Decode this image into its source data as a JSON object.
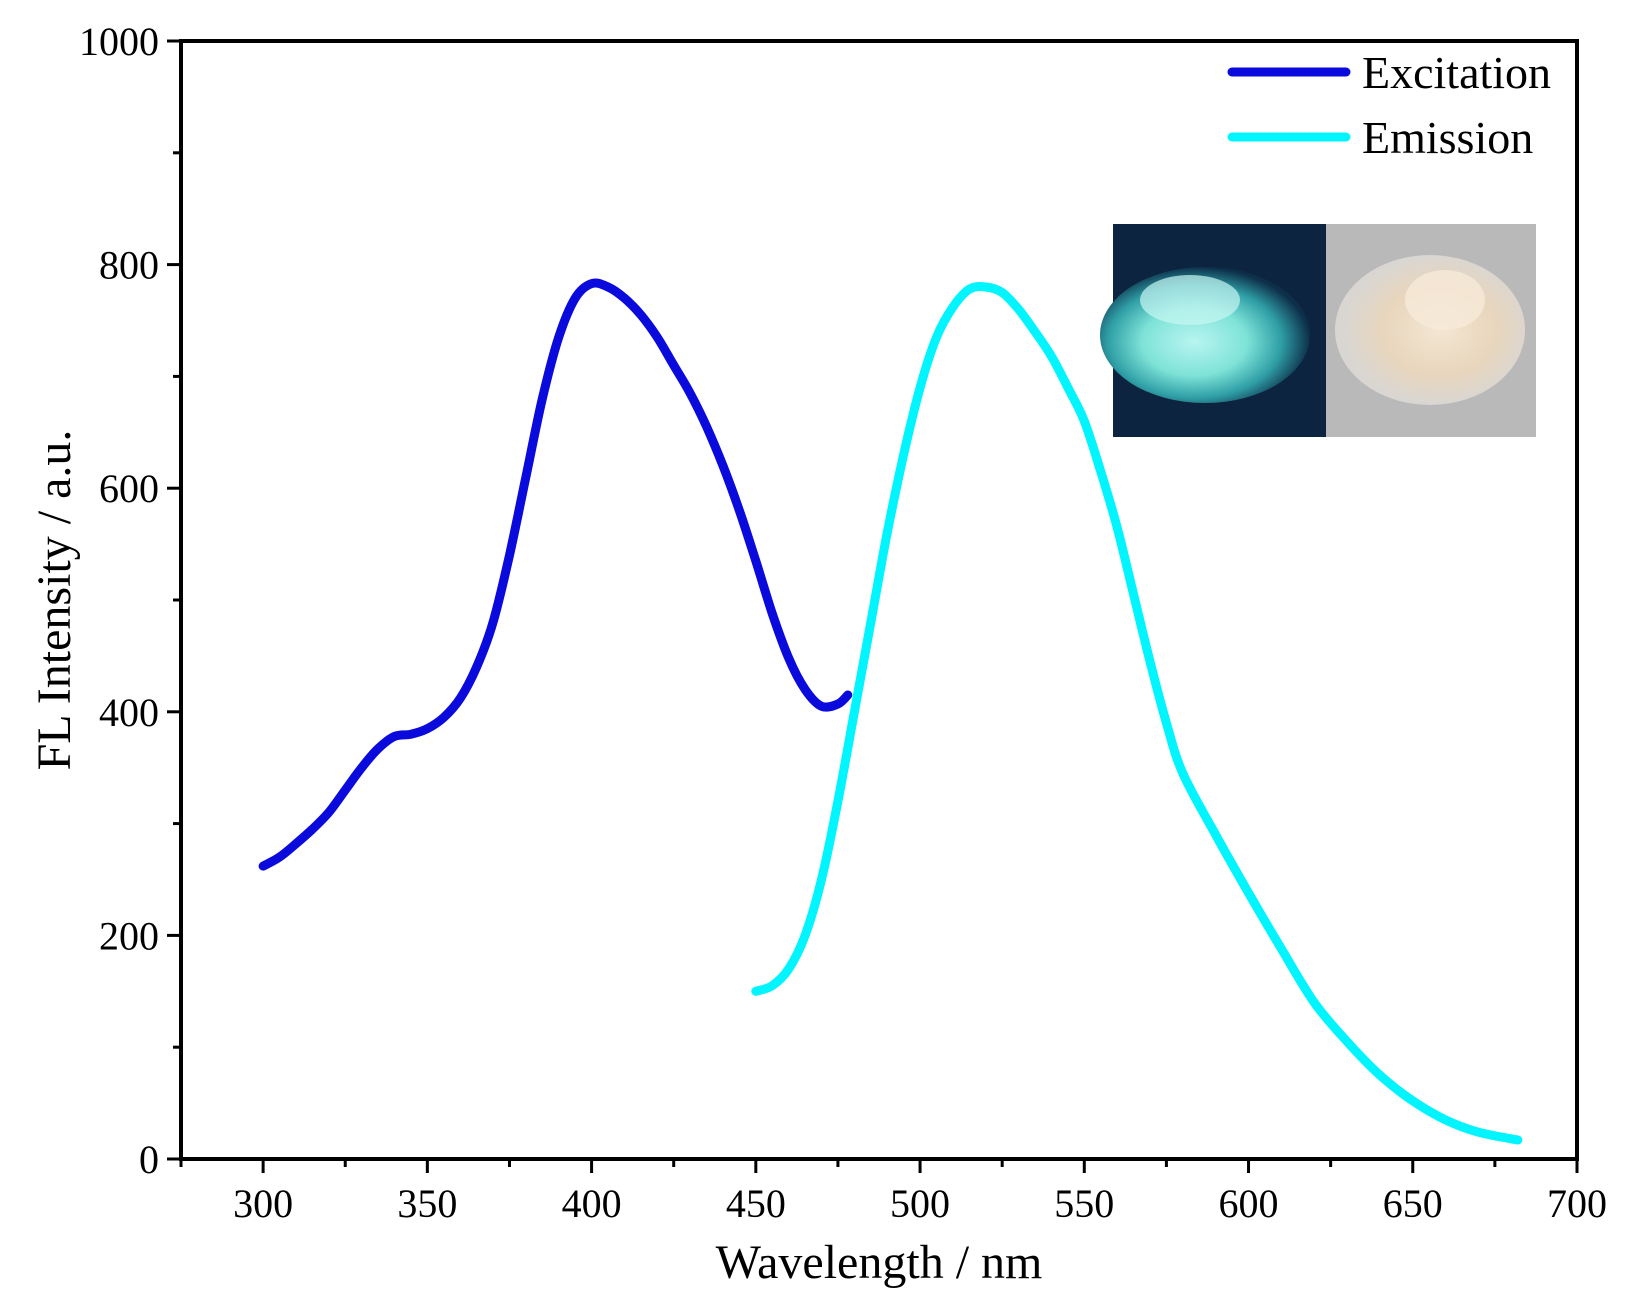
{
  "chart_data": {
    "type": "line",
    "title": "",
    "xlabel": "Wavelength / nm",
    "ylabel": "FL Intensity / a.u.",
    "xlim": [
      275,
      700
    ],
    "ylim": [
      0,
      1000
    ],
    "xticks": [
      300,
      350,
      400,
      450,
      500,
      550,
      600,
      650,
      700
    ],
    "yticks": [
      0,
      200,
      400,
      600,
      800,
      1000
    ],
    "grid": false,
    "legend_position": "top-right",
    "series": [
      {
        "name": "Excitation",
        "color": "#0a0adc",
        "x": [
          300,
          305,
          310,
          315,
          320,
          325,
          330,
          335,
          340,
          345,
          350,
          355,
          360,
          365,
          370,
          375,
          380,
          385,
          390,
          395,
          400,
          405,
          410,
          415,
          420,
          425,
          430,
          435,
          440,
          445,
          450,
          455,
          460,
          465,
          470,
          475,
          478
        ],
        "y": [
          262,
          270,
          282,
          295,
          310,
          330,
          350,
          367,
          378,
          380,
          385,
          395,
          412,
          440,
          480,
          540,
          610,
          680,
          735,
          770,
          783,
          780,
          770,
          755,
          735,
          710,
          685,
          655,
          620,
          580,
          535,
          488,
          448,
          420,
          405,
          407,
          415
        ]
      },
      {
        "name": "Emission",
        "color": "#00f5ff",
        "x": [
          450,
          455,
          460,
          465,
          470,
          475,
          480,
          485,
          490,
          495,
          500,
          505,
          510,
          515,
          520,
          525,
          530,
          535,
          540,
          545,
          550,
          555,
          560,
          565,
          570,
          575,
          580,
          590,
          600,
          610,
          620,
          630,
          640,
          650,
          660,
          670,
          682
        ],
        "y": [
          150,
          155,
          170,
          200,
          250,
          320,
          400,
          480,
          560,
          630,
          690,
          735,
          762,
          778,
          780,
          775,
          760,
          740,
          718,
          690,
          660,
          615,
          565,
          505,
          445,
          390,
          345,
          290,
          238,
          188,
          140,
          105,
          75,
          52,
          35,
          24,
          17
        ]
      }
    ],
    "legend": [
      "Excitation",
      "Emission"
    ]
  }
}
